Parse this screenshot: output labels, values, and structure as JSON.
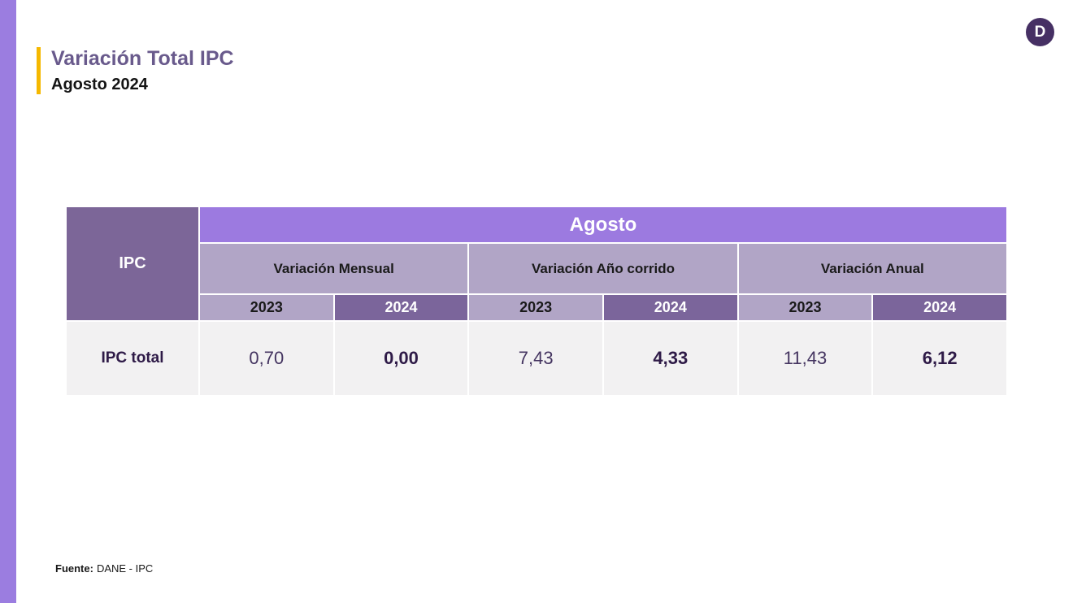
{
  "page": {
    "title": "Variación Total IPC",
    "subtitle": "Agosto 2024",
    "logo_letter": "D"
  },
  "colors": {
    "accent_stripe": "#9b7de0",
    "title_text": "#695a8c",
    "title_accent_bar": "#f5b800",
    "logo_background": "#463064",
    "table_corner": "#7c6698",
    "table_month_bar": "#9c7ae0",
    "table_group_header": "#b1a5c6",
    "table_year_2024": "#7b659b",
    "table_row_background": "#f2f1f2",
    "value_text": "#2e1a47"
  },
  "table": {
    "corner_label": "IPC",
    "month_header": "Agosto",
    "groups": [
      {
        "label": "Variación Mensual"
      },
      {
        "label": "Variación Año corrido"
      },
      {
        "label": "Variación Anual"
      }
    ],
    "year_columns": [
      "2023",
      "2024",
      "2023",
      "2024",
      "2023",
      "2024"
    ],
    "rows": [
      {
        "label": "IPC total",
        "values": [
          "0,70",
          "0,00",
          "7,43",
          "4,33",
          "11,43",
          "6,12"
        ]
      }
    ]
  },
  "footer": {
    "source_label": "Fuente:",
    "source_value": "DANE - IPC"
  },
  "chart_data": {
    "type": "table",
    "title": "Variación Total IPC - Agosto 2024",
    "row_header": "IPC",
    "column_groups": [
      "Variación Mensual",
      "Variación Año corrido",
      "Variación Anual"
    ],
    "columns": [
      "2023",
      "2024",
      "2023",
      "2024",
      "2023",
      "2024"
    ],
    "rows": [
      {
        "name": "IPC total",
        "values": [
          0.7,
          0.0,
          7.43,
          4.33,
          11.43,
          6.12
        ]
      }
    ]
  }
}
